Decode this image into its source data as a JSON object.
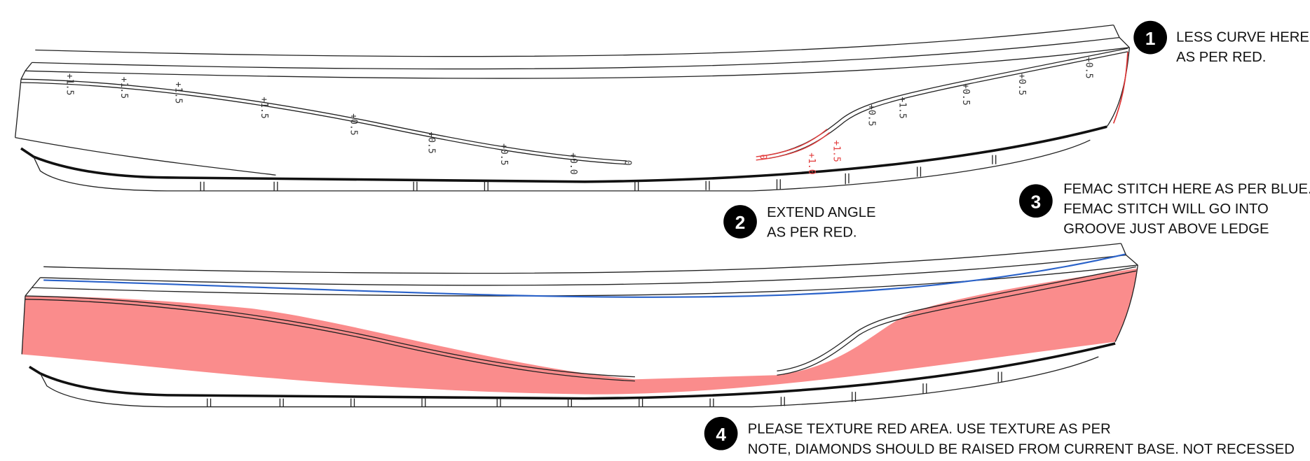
{
  "dimension_labels": [
    {
      "text": "+1.5"
    },
    {
      "text": "+1.5"
    },
    {
      "text": "+1.5"
    },
    {
      "text": "+1.5"
    },
    {
      "text": "+0.5"
    },
    {
      "text": "+0.5"
    },
    {
      "text": "+0.5"
    },
    {
      "text": "+0.0"
    },
    {
      "text": "0"
    },
    {
      "text": "0",
      "color": "red"
    },
    {
      "text": "+1.0",
      "color": "red"
    },
    {
      "text": "+1.5",
      "color": "red"
    },
    {
      "text": "+0.5"
    },
    {
      "text": "+1.5"
    },
    {
      "text": "+0.5"
    },
    {
      "text": "+0.5"
    },
    {
      "text": "+0.5"
    }
  ],
  "notes": [
    {
      "number": "1",
      "lines": [
        "LESS CURVE HERE",
        "AS PER RED."
      ]
    },
    {
      "number": "2",
      "lines": [
        "EXTEND ANGLE",
        "AS PER RED."
      ]
    },
    {
      "number": "3",
      "lines": [
        "FEMAC STITCH HERE AS PER BLUE.",
        "FEMAC STITCH  WILL GO INTO",
        "GROOVE JUST ABOVE LEDGE"
      ]
    },
    {
      "number": "4",
      "lines": [
        "PLEASE TEXTURE RED AREA. USE TEXTURE AS PER",
        "NOTE, DIAMONDS SHOULD BE RAISED FROM CURRENT BASE. NOT RECESSED"
      ]
    }
  ]
}
